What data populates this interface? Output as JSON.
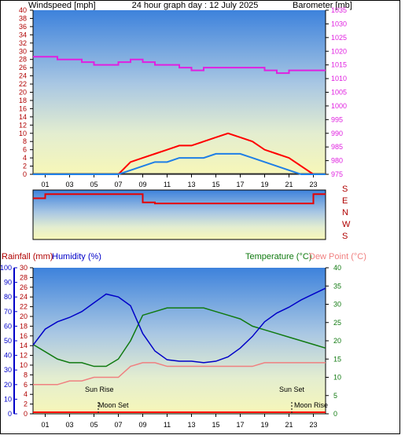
{
  "header": {
    "windspeed_label": "Windspeed [mph]",
    "title": "24 hour graph day : 12 July 2025",
    "barometer_label": "Barometer [mb]"
  },
  "colors": {
    "wind": "#e60000",
    "gust": "#ff0000",
    "wind_avg": "#1f7fe6",
    "barometer": "#e020e0",
    "direction": "#e60000",
    "humidity": "#0000c8",
    "temperature": "#107a10",
    "dewpoint": "#f08080",
    "rain": "#ff0000",
    "label_dark": "#b00000"
  },
  "chart_data": [
    {
      "type": "line",
      "id": "wind_pressure",
      "title": "24 hour graph day : 12 July 2025",
      "x_ticks": [
        "01",
        "03",
        "05",
        "07",
        "09",
        "11",
        "13",
        "15",
        "17",
        "19",
        "21",
        "23"
      ],
      "left_axis": {
        "label": "Windspeed [mph]",
        "ylim": [
          0,
          40
        ],
        "ticks": [
          0,
          2,
          4,
          6,
          8,
          10,
          12,
          14,
          16,
          18,
          20,
          22,
          24,
          26,
          28,
          30,
          32,
          34,
          36,
          38,
          40
        ]
      },
      "right_axis": {
        "label": "Barometer [mb]",
        "ylim": [
          975,
          1035
        ],
        "ticks": [
          975,
          980,
          985,
          990,
          995,
          1000,
          1005,
          1010,
          1015,
          1020,
          1025,
          1030,
          1035
        ]
      },
      "series": [
        {
          "name": "Barometer [mb]",
          "x": [
            0,
            1,
            2,
            3,
            4,
            5,
            6,
            7,
            8,
            9,
            10,
            11,
            12,
            13,
            14,
            15,
            16,
            17,
            18,
            19,
            20,
            21,
            22,
            23,
            24
          ],
          "values": [
            1018,
            1018,
            1017,
            1017,
            1016,
            1015,
            1015,
            1016,
            1017,
            1016,
            1015,
            1015,
            1014,
            1013,
            1014,
            1014,
            1014,
            1014,
            1014,
            1013,
            1012,
            1013,
            1013,
            1013,
            1013
          ]
        },
        {
          "name": "Gust",
          "x": [
            0,
            1,
            2,
            3,
            4,
            5,
            6,
            7,
            8,
            9,
            10,
            11,
            12,
            13,
            14,
            15,
            16,
            17,
            18,
            19,
            20,
            21,
            22,
            23,
            24
          ],
          "values": [
            0,
            0,
            0,
            0,
            0,
            0,
            0,
            0,
            3,
            4,
            5,
            6,
            7,
            7,
            8,
            9,
            10,
            9,
            8,
            6,
            5,
            4,
            2,
            0,
            0
          ]
        },
        {
          "name": "Average",
          "x": [
            0,
            1,
            2,
            3,
            4,
            5,
            6,
            7,
            8,
            9,
            10,
            11,
            12,
            13,
            14,
            15,
            16,
            17,
            18,
            19,
            20,
            21,
            22,
            23,
            24
          ],
          "values": [
            0,
            0,
            0,
            0,
            0,
            0,
            0,
            0,
            1,
            2,
            3,
            3,
            4,
            4,
            4,
            5,
            5,
            5,
            4,
            3,
            2,
            1,
            0,
            0,
            0
          ]
        }
      ]
    },
    {
      "type": "line",
      "id": "wind_direction",
      "y_categories": [
        "S",
        "E",
        "N",
        "W",
        "S"
      ],
      "series": [
        {
          "name": "Direction",
          "x": [
            0,
            1,
            2,
            3,
            4,
            5,
            6,
            7,
            8,
            9,
            10,
            11,
            12,
            13,
            14,
            15,
            16,
            17,
            18,
            19,
            20,
            21,
            22,
            23,
            24
          ],
          "values": [
            300,
            330,
            330,
            330,
            330,
            330,
            330,
            330,
            330,
            270,
            262,
            262,
            262,
            262,
            262,
            262,
            262,
            262,
            262,
            262,
            262,
            262,
            262,
            330,
            330
          ]
        }
      ]
    },
    {
      "type": "line",
      "id": "temp_humidity",
      "x_ticks": [
        "01",
        "03",
        "05",
        "07",
        "09",
        "11",
        "13",
        "15",
        "17",
        "19",
        "21",
        "23"
      ],
      "left_axes": [
        {
          "label": "Rainfall (mm)",
          "ylim": [
            0,
            30
          ],
          "ticks": [
            0,
            2,
            4,
            6,
            8,
            10,
            12,
            14,
            16,
            18,
            20,
            22,
            24,
            26,
            28,
            30
          ]
        },
        {
          "label": "Humidity (%)",
          "ylim": [
            0,
            100
          ],
          "ticks": [
            0,
            10,
            20,
            30,
            40,
            50,
            60,
            70,
            80,
            90,
            100
          ]
        }
      ],
      "right_axis": {
        "label": "Temperature (°C)",
        "label2": "Dew Point (°C)",
        "ylim": [
          0,
          40
        ],
        "ticks": [
          0,
          5,
          10,
          15,
          20,
          25,
          30,
          35,
          40
        ]
      },
      "annotations": [
        "Sun Rise",
        "Sun Set",
        "Moon Set",
        "Moon Rise"
      ],
      "series": [
        {
          "name": "Humidity (%)",
          "x": [
            0,
            1,
            2,
            3,
            4,
            5,
            6,
            7,
            8,
            9,
            10,
            11,
            12,
            13,
            14,
            15,
            16,
            17,
            18,
            19,
            20,
            21,
            22,
            23,
            24
          ],
          "values": [
            47,
            58,
            63,
            66,
            70,
            76,
            82,
            80,
            74,
            55,
            43,
            37,
            36,
            36,
            35,
            36,
            39,
            45,
            53,
            63,
            69,
            73,
            78,
            82,
            86
          ]
        },
        {
          "name": "Temperature (°C)",
          "x": [
            0,
            1,
            2,
            3,
            4,
            5,
            6,
            7,
            8,
            9,
            10,
            11,
            12,
            13,
            14,
            15,
            16,
            17,
            18,
            19,
            20,
            21,
            22,
            23,
            24
          ],
          "values": [
            19,
            17,
            15,
            14,
            14,
            13,
            13,
            15,
            20,
            27,
            28,
            29,
            29,
            29,
            29,
            28,
            27,
            26,
            24,
            23,
            22,
            21,
            20,
            19,
            18
          ]
        },
        {
          "name": "Dew Point (°C)",
          "x": [
            0,
            1,
            2,
            3,
            4,
            5,
            6,
            7,
            8,
            9,
            10,
            11,
            12,
            13,
            14,
            15,
            16,
            17,
            18,
            19,
            20,
            21,
            22,
            23,
            24
          ],
          "values": [
            8,
            8,
            8,
            9,
            9,
            10,
            10,
            10,
            13,
            14,
            14,
            13,
            13,
            13,
            13,
            13,
            13,
            13,
            13,
            14,
            14,
            14,
            14,
            14,
            14
          ]
        }
      ]
    }
  ]
}
